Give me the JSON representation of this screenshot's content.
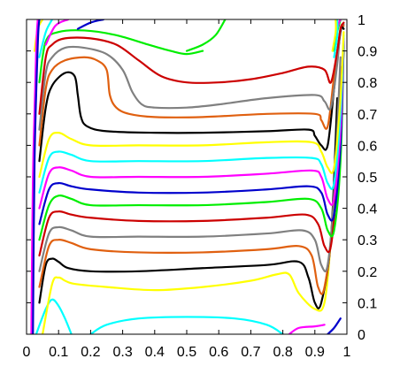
{
  "chart_data": {
    "type": "line",
    "title": "",
    "xlabel": "",
    "ylabel": "",
    "xlim": [
      0,
      1
    ],
    "ylim": [
      0,
      1
    ],
    "grid": false,
    "legend": "none",
    "y_axis_side": "right",
    "x_ticks": [
      "0",
      "0.1",
      "0.2",
      "0.3",
      "0.4",
      "0.5",
      "0.6",
      "0.7",
      "0.8",
      "0.9",
      "1"
    ],
    "y_ticks": [
      "0",
      "0.1",
      "0.2",
      "0.3",
      "0.4",
      "0.5",
      "0.6",
      "0.7",
      "0.8",
      "0.9",
      "1"
    ],
    "series": [
      {
        "color": "#00ffff",
        "x": [
          0.2,
          0.25,
          0.35,
          0.5,
          0.65,
          0.75,
          0.8
        ],
        "y": [
          0,
          0.03,
          0.05,
          0.055,
          0.05,
          0.03,
          0
        ]
      },
      {
        "color": "#00ffff",
        "x": [
          0.03,
          0.06,
          0.08,
          0.1,
          0.12,
          0.14
        ],
        "y": [
          0,
          0.08,
          0.11,
          0.09,
          0.05,
          0
        ]
      },
      {
        "color": "#ff00ff",
        "x": [
          0.82,
          0.85,
          0.9,
          0.93
        ],
        "y": [
          0,
          0.02,
          0.025,
          0.03
        ]
      },
      {
        "color": "#0000cc",
        "x": [
          0.94,
          0.96,
          0.98
        ],
        "y": [
          0,
          0.02,
          0.05
        ]
      },
      {
        "color": "#ffff00",
        "x": [
          0.05,
          0.08,
          0.1,
          0.12,
          0.15,
          0.25,
          0.4,
          0.55,
          0.7,
          0.78,
          0.82,
          0.85,
          0.9,
          0.93,
          0.95,
          0.97
        ],
        "y": [
          0,
          0.16,
          0.18,
          0.17,
          0.16,
          0.15,
          0.14,
          0.15,
          0.17,
          0.19,
          0.19,
          0.13,
          0.08,
          0.1,
          0.3,
          0.6
        ]
      },
      {
        "color": "#000000",
        "x": [
          0.04,
          0.06,
          0.08,
          0.1,
          0.13,
          0.2,
          0.35,
          0.55,
          0.75,
          0.85,
          0.88,
          0.9,
          0.92,
          0.95,
          0.97
        ],
        "y": [
          0.1,
          0.22,
          0.24,
          0.23,
          0.21,
          0.2,
          0.2,
          0.21,
          0.22,
          0.23,
          0.18,
          0.1,
          0.1,
          0.3,
          0.75
        ]
      },
      {
        "color": "#e06010",
        "x": [
          0.04,
          0.07,
          0.1,
          0.14,
          0.2,
          0.35,
          0.55,
          0.75,
          0.85,
          0.89,
          0.91,
          0.93,
          0.96,
          0.98
        ],
        "y": [
          0.15,
          0.28,
          0.3,
          0.29,
          0.27,
          0.26,
          0.26,
          0.27,
          0.28,
          0.25,
          0.15,
          0.15,
          0.4,
          0.85
        ]
      },
      {
        "color": "#808080",
        "x": [
          0.04,
          0.07,
          0.1,
          0.14,
          0.2,
          0.35,
          0.55,
          0.75,
          0.86,
          0.9,
          0.92,
          0.94,
          0.96,
          0.98
        ],
        "y": [
          0.2,
          0.32,
          0.34,
          0.33,
          0.31,
          0.31,
          0.31,
          0.32,
          0.33,
          0.3,
          0.22,
          0.22,
          0.45,
          0.88
        ]
      },
      {
        "color": "#cc0000",
        "x": [
          0.04,
          0.07,
          0.1,
          0.14,
          0.2,
          0.35,
          0.55,
          0.75,
          0.87,
          0.91,
          0.93,
          0.95,
          0.97,
          0.99
        ],
        "y": [
          0.25,
          0.37,
          0.39,
          0.38,
          0.37,
          0.36,
          0.36,
          0.37,
          0.38,
          0.35,
          0.28,
          0.28,
          0.5,
          0.9
        ]
      },
      {
        "color": "#00ee00",
        "x": [
          0.04,
          0.07,
          0.1,
          0.14,
          0.2,
          0.35,
          0.55,
          0.75,
          0.88,
          0.92,
          0.94,
          0.96,
          0.98,
          0.99
        ],
        "y": [
          0.3,
          0.41,
          0.44,
          0.43,
          0.41,
          0.41,
          0.41,
          0.42,
          0.43,
          0.4,
          0.33,
          0.33,
          0.55,
          0.92
        ]
      },
      {
        "color": "#0000cc",
        "x": [
          0.04,
          0.07,
          0.1,
          0.14,
          0.2,
          0.35,
          0.55,
          0.75,
          0.88,
          0.92,
          0.94,
          0.96,
          0.98,
          0.99
        ],
        "y": [
          0.35,
          0.46,
          0.48,
          0.47,
          0.46,
          0.45,
          0.45,
          0.46,
          0.47,
          0.45,
          0.38,
          0.38,
          0.6,
          0.93
        ]
      },
      {
        "color": "#ff00ff",
        "x": [
          0.04,
          0.07,
          0.1,
          0.14,
          0.2,
          0.35,
          0.55,
          0.75,
          0.89,
          0.92,
          0.94,
          0.96,
          0.98,
          0.99
        ],
        "y": [
          0.4,
          0.51,
          0.53,
          0.52,
          0.5,
          0.5,
          0.5,
          0.51,
          0.52,
          0.5,
          0.43,
          0.43,
          0.65,
          0.94
        ]
      },
      {
        "color": "#00ffff",
        "x": [
          0.04,
          0.07,
          0.1,
          0.14,
          0.2,
          0.35,
          0.55,
          0.75,
          0.89,
          0.92,
          0.94,
          0.96,
          0.98,
          0.99
        ],
        "y": [
          0.45,
          0.56,
          0.58,
          0.57,
          0.55,
          0.55,
          0.55,
          0.56,
          0.56,
          0.54,
          0.48,
          0.48,
          0.7,
          0.95
        ]
      },
      {
        "color": "#ffff00",
        "x": [
          0.04,
          0.07,
          0.1,
          0.14,
          0.2,
          0.35,
          0.55,
          0.75,
          0.89,
          0.92,
          0.94,
          0.96,
          0.98,
          0.99
        ],
        "y": [
          0.5,
          0.62,
          0.64,
          0.62,
          0.6,
          0.6,
          0.6,
          0.61,
          0.61,
          0.58,
          0.53,
          0.53,
          0.75,
          0.96
        ]
      },
      {
        "color": "#000000",
        "x": [
          0.04,
          0.06,
          0.08,
          0.12,
          0.15,
          0.16,
          0.17,
          0.19,
          0.25,
          0.4,
          0.55,
          0.75,
          0.88,
          0.9,
          0.92,
          0.94,
          0.96,
          0.98,
          0.99
        ],
        "y": [
          0.55,
          0.72,
          0.79,
          0.83,
          0.82,
          0.76,
          0.69,
          0.66,
          0.645,
          0.64,
          0.64,
          0.645,
          0.65,
          0.63,
          0.6,
          0.6,
          0.78,
          0.96,
          0.97
        ]
      },
      {
        "color": "#e06010",
        "x": [
          0.04,
          0.06,
          0.08,
          0.12,
          0.18,
          0.22,
          0.25,
          0.26,
          0.28,
          0.32,
          0.4,
          0.55,
          0.75,
          0.9,
          0.92,
          0.94,
          0.96,
          0.98,
          0.99
        ],
        "y": [
          0.6,
          0.78,
          0.84,
          0.87,
          0.88,
          0.87,
          0.84,
          0.76,
          0.72,
          0.7,
          0.69,
          0.69,
          0.7,
          0.7,
          0.68,
          0.66,
          0.82,
          0.97,
          0.98
        ]
      },
      {
        "color": "#808080",
        "x": [
          0.04,
          0.06,
          0.08,
          0.12,
          0.18,
          0.25,
          0.3,
          0.33,
          0.36,
          0.4,
          0.5,
          0.6,
          0.75,
          0.9,
          0.93,
          0.95,
          0.97,
          0.98,
          0.99
        ],
        "y": [
          0.65,
          0.83,
          0.88,
          0.91,
          0.91,
          0.89,
          0.84,
          0.77,
          0.73,
          0.72,
          0.72,
          0.73,
          0.75,
          0.76,
          0.74,
          0.72,
          0.86,
          0.97,
          0.985
        ]
      },
      {
        "color": "#cc0000",
        "x": [
          0.04,
          0.06,
          0.08,
          0.12,
          0.2,
          0.28,
          0.35,
          0.42,
          0.5,
          0.6,
          0.7,
          0.8,
          0.88,
          0.93,
          0.95,
          0.97,
          0.98,
          0.99
        ],
        "y": [
          0.7,
          0.88,
          0.92,
          0.94,
          0.94,
          0.92,
          0.87,
          0.82,
          0.8,
          0.8,
          0.81,
          0.83,
          0.85,
          0.84,
          0.8,
          0.9,
          0.97,
          0.99
        ]
      },
      {
        "color": "#00ee00",
        "x": [
          0.04,
          0.06,
          0.1,
          0.18,
          0.28,
          0.38,
          0.45,
          0.5,
          0.55
        ],
        "y": [
          0.8,
          0.93,
          0.96,
          0.965,
          0.95,
          0.92,
          0.9,
          0.89,
          0.9
        ]
      },
      {
        "color": "#00ee00",
        "x": [
          0.5,
          0.55,
          0.59,
          0.62
        ],
        "y": [
          0.9,
          0.92,
          0.95,
          1.0
        ]
      },
      {
        "color": "#00ee00",
        "x": [
          0.96,
          0.97,
          0.98
        ],
        "y": [
          0.9,
          0.96,
          1.0
        ]
      },
      {
        "color": "#0000cc",
        "x": [
          0.16,
          0.2,
          0.24
        ],
        "y": [
          0.97,
          0.99,
          1.0
        ]
      },
      {
        "color": "#ff00ff",
        "x": [
          0.06,
          0.09,
          0.13
        ],
        "y": [
          0.92,
          0.98,
          1.0
        ]
      },
      {
        "color": "#00ffff",
        "x": [
          0.04,
          0.06,
          0.08
        ],
        "y": [
          0.88,
          0.96,
          1.0
        ]
      },
      {
        "color": "#ffff00",
        "x": [
          0.025,
          0.035,
          0.05
        ],
        "y": [
          0.9,
          0.97,
          1.0
        ]
      },
      {
        "color": "#ff00ff",
        "x": [
          0.97,
          0.975,
          0.98
        ],
        "y": [
          0.97,
          0.99,
          1.0
        ]
      },
      {
        "color": "#00ffff",
        "x": [
          0.96,
          0.97,
          0.97
        ],
        "y": [
          0.88,
          0.95,
          1.0
        ]
      },
      {
        "color": "#ffff00",
        "x": [
          0.955,
          0.965,
          0.965
        ],
        "y": [
          0.9,
          0.96,
          1.0
        ]
      },
      {
        "color": "#ff00ff",
        "x": [
          0.015,
          0.02,
          0.03,
          0.035
        ],
        "y": [
          0.0,
          0.5,
          0.9,
          1.0
        ]
      },
      {
        "color": "#0000cc",
        "x": [
          0.02,
          0.025,
          0.035,
          0.04
        ],
        "y": [
          0.0,
          0.55,
          0.92,
          1.0
        ]
      }
    ]
  }
}
